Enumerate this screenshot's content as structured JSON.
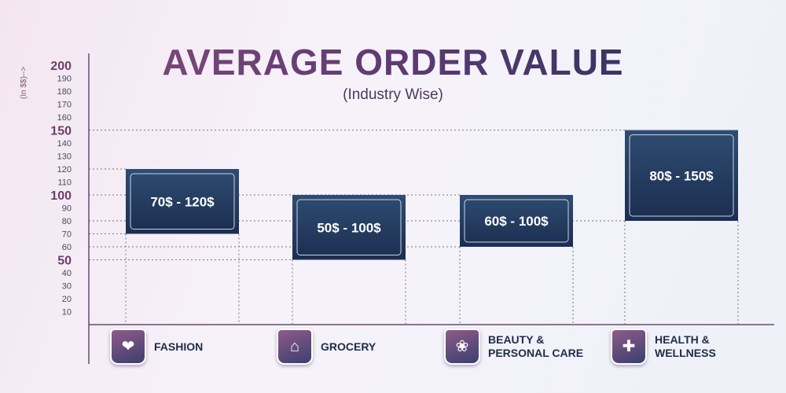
{
  "chart_data": {
    "type": "floating-bar",
    "title": "AVERAGE ORDER VALUE",
    "subtitle": "(Industry Wise)",
    "ylabel": "(In $$)-->",
    "ylim": [
      0,
      200
    ],
    "yticks": [
      10,
      20,
      30,
      40,
      50,
      60,
      70,
      80,
      90,
      100,
      110,
      120,
      130,
      140,
      150,
      160,
      170,
      180,
      190,
      200
    ],
    "major_ticks": [
      50,
      100,
      150,
      200
    ],
    "grid": "dotted at bar ends",
    "categories": [
      "FASHION",
      "GROCERY",
      "BEAUTY & PERSONAL CARE",
      "HEALTH & WELLNESS"
    ],
    "ranges": [
      {
        "low": 70,
        "high": 120,
        "label": "70$ - 120$"
      },
      {
        "low": 50,
        "high": 100,
        "label": "50$ - 100$"
      },
      {
        "low": 60,
        "high": 100,
        "label": "60$ - 100$"
      },
      {
        "low": 80,
        "high": 150,
        "label": "80$ - 150$"
      }
    ],
    "label_lines": [
      [
        "FASHION"
      ],
      [
        "GROCERY"
      ],
      [
        "BEAUTY &",
        "PERSONAL CARE"
      ],
      [
        "HEALTH &",
        "WELLNESS"
      ]
    ],
    "icons": [
      "dress-icon",
      "shopping-basket-icon",
      "cosmetics-icon",
      "health-kit-icon"
    ],
    "colors": {
      "bar_dark": "#1b2e50",
      "bar_light": "#2f4c72",
      "axis": "#6a4a72",
      "grid": "#777777",
      "major_tick": "#6a3f68"
    }
  }
}
